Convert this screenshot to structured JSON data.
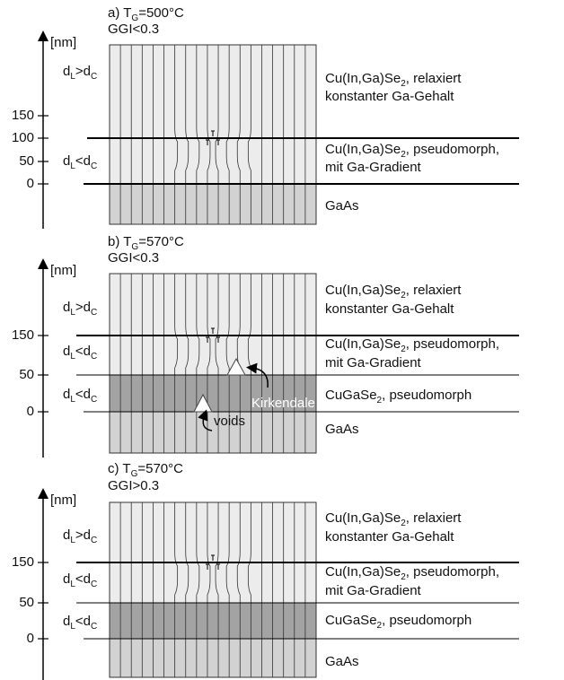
{
  "panels": [
    {
      "label": "a) T",
      "label_sub": "G",
      "label_rest": "=500°C",
      "ggi": "GGI<0.3",
      "unit": "[nm]",
      "ticks": [
        "150",
        "100",
        "50",
        "0"
      ],
      "regions": [
        {
          "d": "d",
          "d_sub": "L",
          "op": ">d",
          "op_sub": "C"
        },
        {
          "d": "d",
          "d_sub": "L",
          "op": "<d",
          "op_sub": "C"
        }
      ],
      "layers": [
        [
          {
            "text": "Cu(In,Ga)Se",
            "sub": "2",
            "rest": ", relaxiert"
          },
          {
            "text": "konstanter Ga-Gehalt"
          }
        ],
        [
          {
            "text": "Cu(In,Ga)Se",
            "sub": "2",
            "rest": ", pseudomorph,"
          },
          {
            "text": "mit Ga-Gradient"
          }
        ],
        [
          {
            "text": "GaAs"
          }
        ]
      ]
    },
    {
      "label": "b) T",
      "label_sub": "G",
      "label_rest": "=570°C",
      "ggi": "GGI<0.3",
      "unit": "[nm]",
      "ticks": [
        "150",
        "50",
        "0"
      ],
      "regions": [
        {
          "d": "d",
          "d_sub": "L",
          "op": ">d",
          "op_sub": "C"
        },
        {
          "d": "d",
          "d_sub": "L",
          "op": "<d",
          "op_sub": "C"
        },
        {
          "d": "d",
          "d_sub": "L",
          "op": "<d",
          "op_sub": "C"
        }
      ],
      "layers": [
        [
          {
            "text": "Cu(In,Ga)Se",
            "sub": "2",
            "rest": ", relaxiert"
          },
          {
            "text": "konstanter Ga-Gehalt"
          }
        ],
        [
          {
            "text": "Cu(In,Ga)Se",
            "sub": "2",
            "rest": ", pseudomorph,"
          },
          {
            "text": "mit Ga-Gradient"
          }
        ],
        [
          {
            "text": "CuGaSe",
            "sub": "2",
            "rest": ", pseudomorph"
          }
        ],
        [
          {
            "text": "GaAs"
          }
        ]
      ],
      "voids": [
        "Kirkendale",
        "voids"
      ]
    },
    {
      "label": "c) T",
      "label_sub": "G",
      "label_rest": "=570°C",
      "ggi": "GGI>0.3",
      "unit": "[nm]",
      "ticks": [
        "150",
        "50",
        "0"
      ],
      "regions": [
        {
          "d": "d",
          "d_sub": "L",
          "op": ">d",
          "op_sub": "C"
        },
        {
          "d": "d",
          "d_sub": "L",
          "op": "<d",
          "op_sub": "C"
        },
        {
          "d": "d",
          "d_sub": "L",
          "op": "<d",
          "op_sub": "C"
        }
      ],
      "layers": [
        [
          {
            "text": "Cu(In,Ga)Se",
            "sub": "2",
            "rest": ", relaxiert"
          },
          {
            "text": "konstanter Ga-Gehalt"
          }
        ],
        [
          {
            "text": "Cu(In,Ga)Se",
            "sub": "2",
            "rest": ", pseudomorph,"
          },
          {
            "text": "mit Ga-Gradient"
          }
        ],
        [
          {
            "text": "CuGaSe",
            "sub": "2",
            "rest": ", pseudomorph"
          }
        ],
        [
          {
            "text": "GaAs"
          }
        ]
      ]
    }
  ]
}
